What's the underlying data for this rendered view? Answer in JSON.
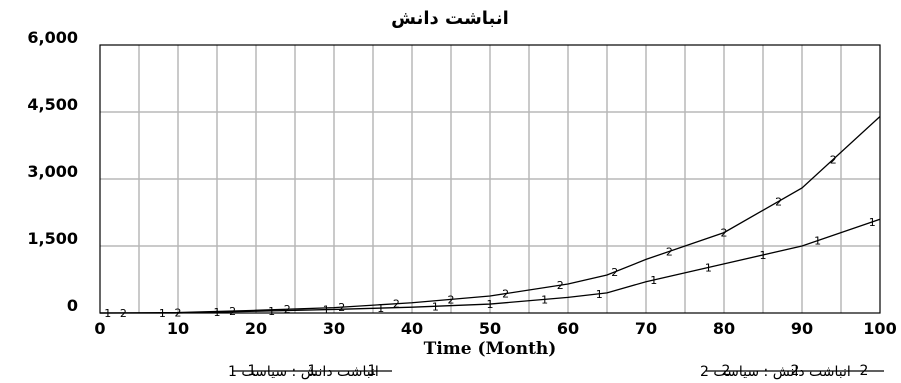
{
  "chart_data": {
    "type": "line",
    "title": "انباشت دانش",
    "xlabel": "Time (Month)",
    "ylabel": "",
    "xlim": [
      0,
      100
    ],
    "ylim": [
      0,
      6000
    ],
    "x_ticks": [
      "0",
      "10",
      "20",
      "30",
      "40",
      "50",
      "60",
      "70",
      "80",
      "90",
      "100"
    ],
    "y_ticks": [
      "0",
      "1,500",
      "3,000",
      "4,500",
      "6,000"
    ],
    "grid": true,
    "legend_position": "bottom",
    "x": [
      0,
      10,
      20,
      30,
      40,
      50,
      60,
      65,
      70,
      80,
      90,
      100
    ],
    "series": [
      {
        "name": "انباشت دانش : سیاست 1",
        "marker": "1",
        "color": "#000000",
        "values": [
          0,
          0,
          40,
          80,
          130,
          200,
          350,
          450,
          700,
          1100,
          1500,
          2100
        ]
      },
      {
        "name": "انباشت دانش : سیاست 2",
        "marker": "2",
        "color": "#000000",
        "values": [
          0,
          10,
          60,
          120,
          230,
          380,
          650,
          850,
          1200,
          1800,
          2800,
          4400
        ]
      }
    ]
  }
}
